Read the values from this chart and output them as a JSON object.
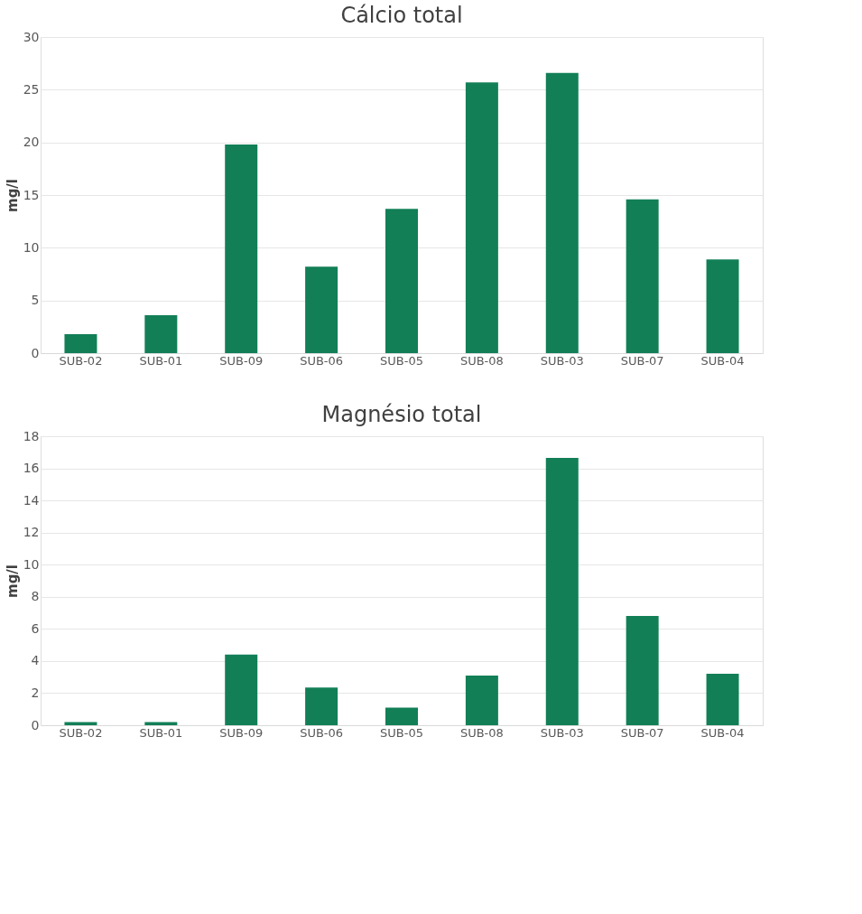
{
  "chart_data": [
    {
      "type": "bar",
      "title": "Cálcio total",
      "ylabel": "mg/l",
      "categories": [
        "SUB-02",
        "SUB-01",
        "SUB-09",
        "SUB-06",
        "SUB-05",
        "SUB-08",
        "SUB-03",
        "SUB-07",
        "SUB-04"
      ],
      "values": [
        1.8,
        3.6,
        19.8,
        8.2,
        13.7,
        25.7,
        26.6,
        14.6,
        8.9
      ],
      "color": "#127f57",
      "ylim": [
        0,
        30
      ],
      "yticks": [
        0,
        5,
        10,
        15,
        20,
        25,
        30
      ],
      "grid": "y"
    },
    {
      "type": "bar",
      "title": "Magnésio total",
      "ylabel": "mg/l",
      "categories": [
        "SUB-02",
        "SUB-01",
        "SUB-09",
        "SUB-06",
        "SUB-05",
        "SUB-08",
        "SUB-03",
        "SUB-07",
        "SUB-04"
      ],
      "values": [
        0.2,
        0.2,
        4.4,
        2.35,
        1.1,
        3.1,
        16.65,
        6.8,
        3.2
      ],
      "color": "#127f57",
      "ylim": [
        0,
        18
      ],
      "yticks": [
        0,
        2,
        4,
        6,
        8,
        10,
        12,
        14,
        16,
        18
      ],
      "grid": "y"
    }
  ]
}
